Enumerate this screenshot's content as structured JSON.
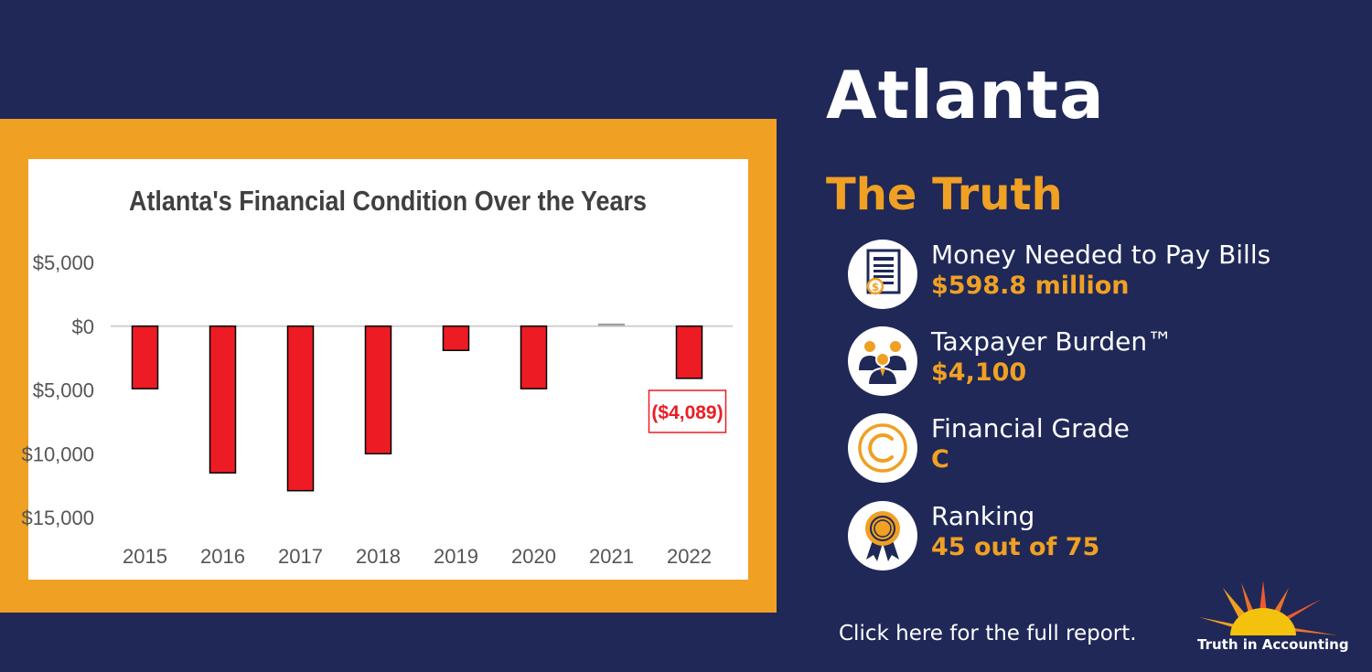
{
  "page": {
    "city": "Atlanta",
    "subtitle": "The Truth",
    "report_link": "Click here for the full report.",
    "logo_text": "Truth in Accounting"
  },
  "metrics": [
    {
      "label": "Money Needed to Pay Bills",
      "value": "$598.8 million",
      "icon": "bill-receipt-icon"
    },
    {
      "label": "Taxpayer Burden™",
      "value": "$4,100",
      "icon": "taxpayers-icon"
    },
    {
      "label": "Financial Grade",
      "value": "C",
      "icon": "grade-c-icon"
    },
    {
      "label": "Ranking",
      "value": "45 out of 75",
      "icon": "award-ribbon-icon"
    }
  ],
  "colors": {
    "background": "#1f2857",
    "accent": "#f0a023",
    "bar": "#ed1c24",
    "text_white": "#ffffff"
  },
  "chart_data": {
    "type": "bar",
    "title": "Atlanta's Financial Condition Over the Years",
    "categories": [
      "2015",
      "2016",
      "2017",
      "2018",
      "2019",
      "2020",
      "2021",
      "2022"
    ],
    "values": [
      -4900,
      -11500,
      -12900,
      -10000,
      -1900,
      -4900,
      100,
      -4089
    ],
    "ylim": [
      -15000,
      5000
    ],
    "yticks": [
      5000,
      0,
      -5000,
      -10000,
      -15000
    ],
    "ytick_labels": [
      "$5,000",
      "$0",
      "$5,000",
      "$10,000",
      "$15,000"
    ],
    "annotation": {
      "category": "2022",
      "text": "($4,089)"
    },
    "xlabel": "",
    "ylabel": "",
    "grid": false
  }
}
